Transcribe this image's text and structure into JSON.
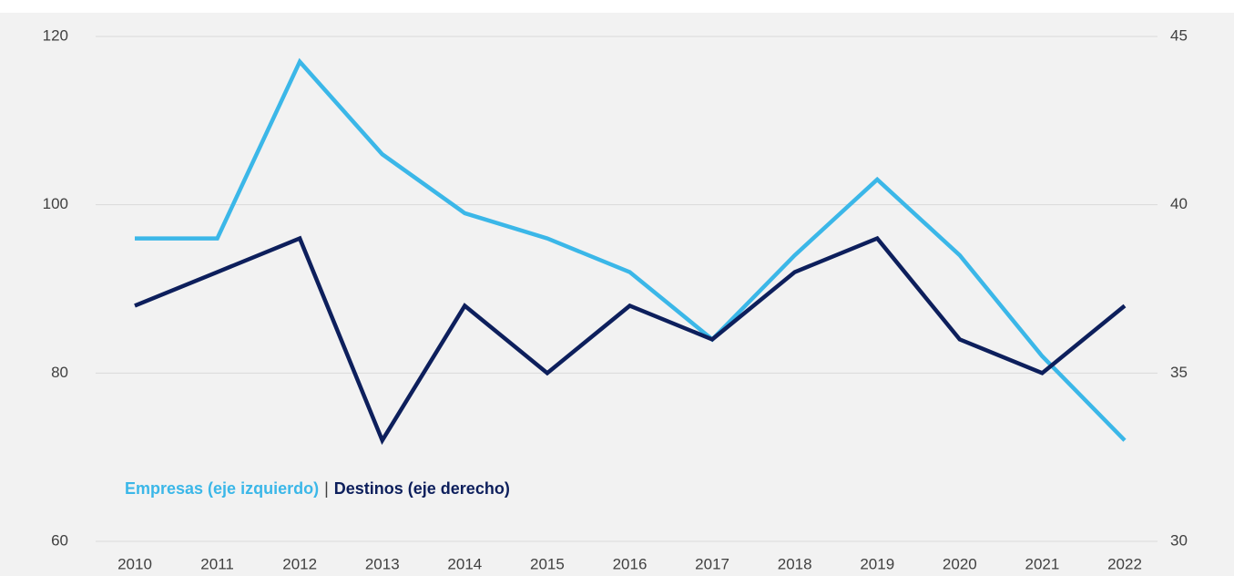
{
  "chart_data": {
    "type": "line",
    "categories": [
      "2010",
      "2011",
      "2012",
      "2013",
      "2014",
      "2015",
      "2016",
      "2017",
      "2018",
      "2019",
      "2020",
      "2021",
      "2022"
    ],
    "series": [
      {
        "name": "Empresas (eje izquierdo)",
        "color": "#3bb7e8",
        "axis": "y",
        "values": [
          96,
          96,
          117,
          106,
          99,
          96,
          92,
          84,
          94,
          103,
          94,
          82,
          72
        ]
      },
      {
        "name": "Destinos (eje derecho)",
        "color": "#0d1f5c",
        "axis": "y2",
        "values": [
          37,
          38,
          39,
          33,
          37,
          35,
          37,
          36,
          38,
          39,
          36,
          35,
          37
        ]
      }
    ],
    "legend_separator": "|",
    "ylim": [
      60,
      120
    ],
    "yticks": [
      60,
      80,
      100,
      120
    ],
    "y2lim": [
      30,
      45
    ],
    "y2ticks": [
      30,
      35,
      40,
      45
    ],
    "grid": true
  }
}
